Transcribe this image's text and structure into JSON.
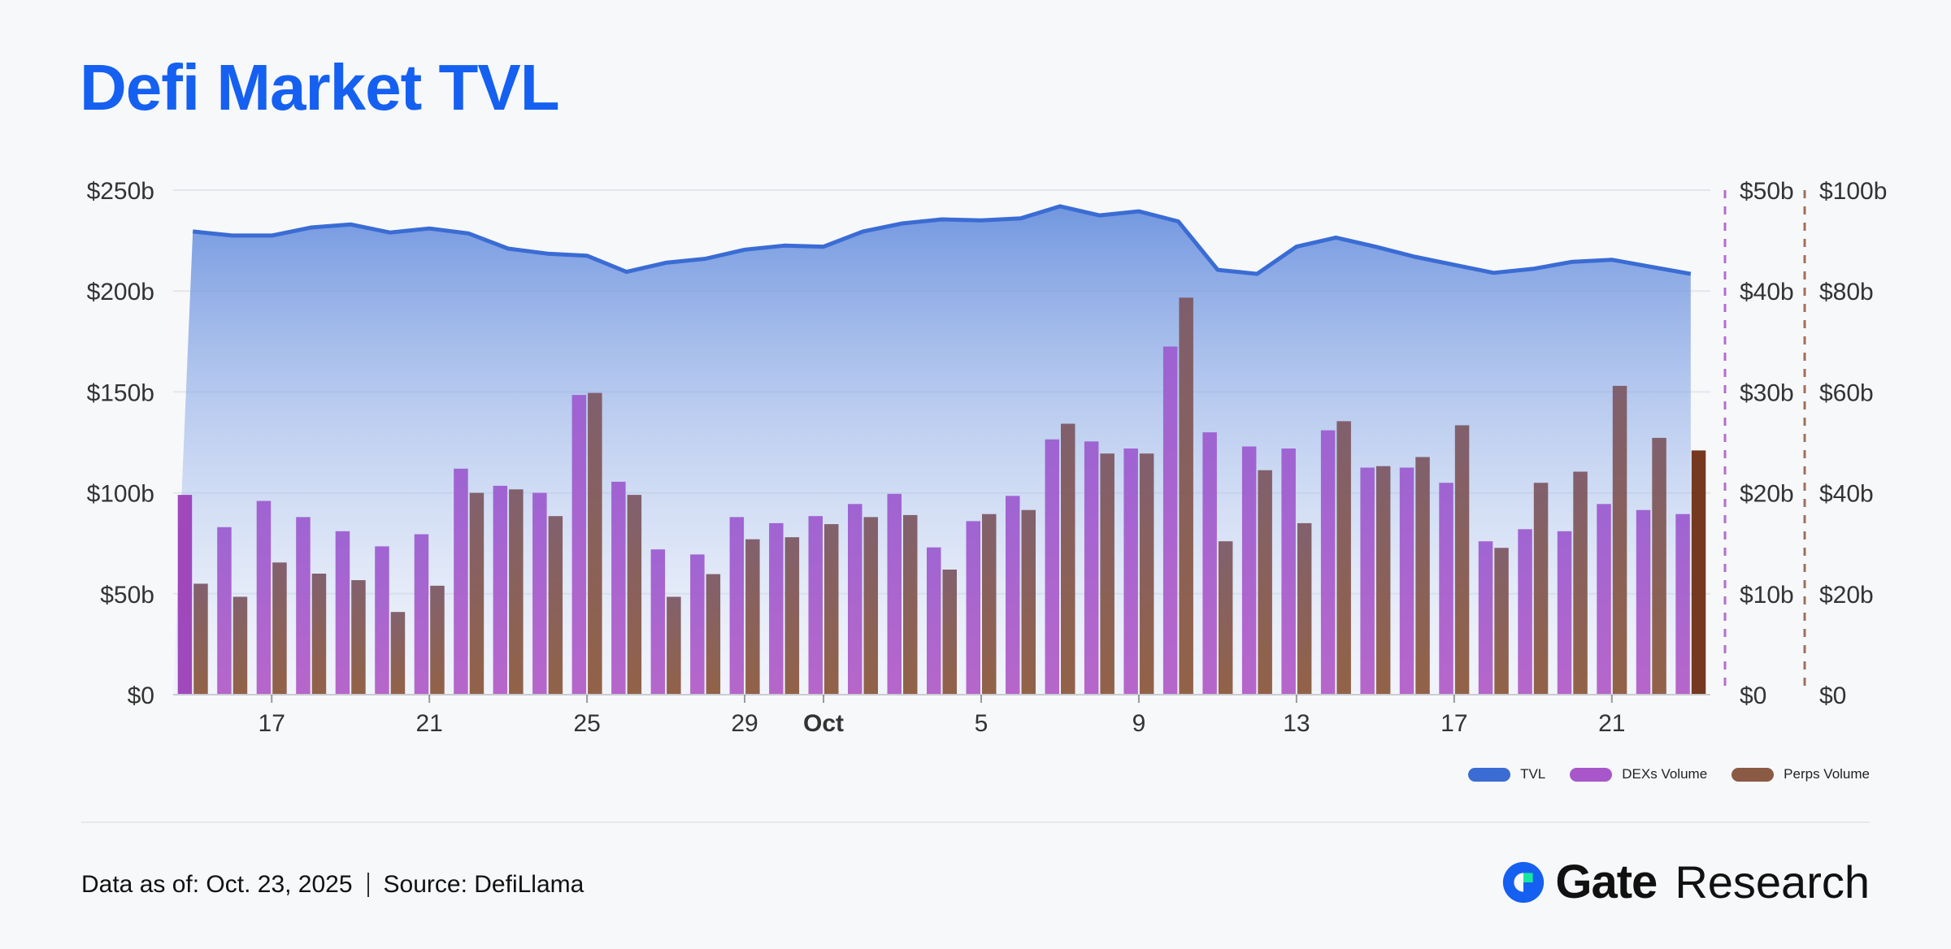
{
  "header": {
    "title": "Defi Market TVL"
  },
  "footer": {
    "data_as_of": "Data as of: Oct. 23, 2025",
    "source": "Source: DefiLlama",
    "brand_name": "Gate",
    "brand_sub": "Research"
  },
  "colors": {
    "tvl": "#3a6cd4",
    "dex": "#9b59c9",
    "perps": "#8a5a44",
    "title": "#1560f0"
  },
  "chart_data": {
    "type": "bar",
    "x_ticks": [
      {
        "index": 2,
        "label": "17"
      },
      {
        "index": 6,
        "label": "21"
      },
      {
        "index": 10,
        "label": "25"
      },
      {
        "index": 14,
        "label": "29"
      },
      {
        "index": 16,
        "label": "Oct"
      },
      {
        "index": 20,
        "label": "5"
      },
      {
        "index": 24,
        "label": "9"
      },
      {
        "index": 28,
        "label": "13"
      },
      {
        "index": 32,
        "label": "17"
      },
      {
        "index": 36,
        "label": "21"
      }
    ],
    "axes": {
      "left": {
        "min": 0,
        "max": 250,
        "ticks": [
          "$0",
          "$50b",
          "$100b",
          "$150b",
          "$200b",
          "$250b"
        ]
      },
      "right1": {
        "min": 0,
        "max": 50,
        "ticks": [
          "$0",
          "$10b",
          "$20b",
          "$30b",
          "$40b",
          "$50b"
        ]
      },
      "right2": {
        "min": 0,
        "max": 100,
        "ticks": [
          "$0",
          "$20b",
          "$40b",
          "$60b",
          "$80b",
          "$100b"
        ]
      }
    },
    "series": [
      {
        "name": "TVL",
        "axis": "left",
        "kind": "area",
        "values": [
          229.5,
          227.5,
          227.5,
          231.5,
          233,
          229,
          231,
          228.5,
          221,
          218.5,
          217.5,
          209.5,
          214,
          216,
          220.5,
          222.5,
          222,
          229.5,
          233.5,
          235.5,
          235,
          236,
          242,
          237.5,
          239.5,
          234.5,
          210.5,
          208.5,
          222,
          226.5,
          222,
          217,
          213,
          209,
          211,
          214.5,
          215.5,
          212,
          208.5
        ]
      },
      {
        "name": "DEXs Volume",
        "axis": "right1",
        "kind": "bar",
        "values": [
          19.8,
          16.6,
          19.2,
          17.6,
          16.2,
          14.7,
          15.9,
          22.4,
          20.7,
          20.0,
          29.7,
          21.1,
          14.4,
          13.9,
          17.6,
          17.0,
          17.7,
          18.9,
          19.9,
          14.6,
          17.2,
          19.7,
          25.3,
          25.1,
          24.4,
          34.5,
          26.0,
          24.6,
          24.4,
          26.2,
          22.5,
          22.5,
          21.0,
          15.2,
          16.4,
          16.2,
          18.9,
          18.3,
          17.9
        ]
      },
      {
        "name": "Perps Volume",
        "axis": "right2",
        "kind": "bar",
        "values": [
          22.0,
          19.4,
          26.2,
          24.0,
          22.7,
          16.4,
          21.6,
          40.0,
          40.7,
          35.4,
          59.8,
          39.6,
          19.4,
          23.9,
          30.8,
          31.2,
          33.8,
          35.2,
          35.6,
          24.8,
          35.8,
          36.6,
          53.7,
          47.8,
          47.8,
          78.7,
          30.4,
          44.5,
          34.0,
          54.2,
          45.3,
          47.1,
          53.4,
          29.1,
          42.0,
          44.2,
          61.2,
          50.9,
          48.4
        ]
      }
    ],
    "legend": [
      "TVL",
      "DEXs Volume",
      "Perps Volume"
    ],
    "legend_position": "bottom-right",
    "grid": true
  }
}
